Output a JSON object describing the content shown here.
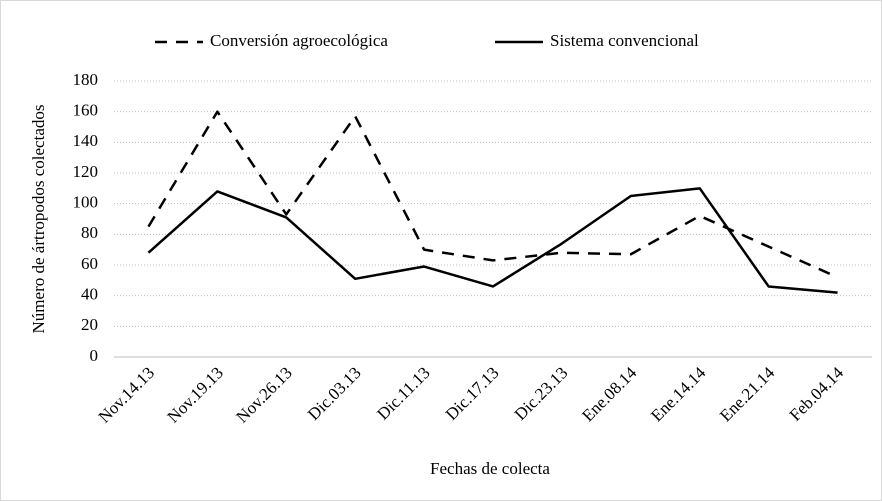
{
  "chart_data": {
    "type": "line",
    "categories": [
      "Nov.14.13",
      "Nov.19.13",
      "Nov.26.13",
      "Dic.03.13",
      "Dic.11.13",
      "Dic.17.13",
      "Dic.23.13",
      "Ene.08.14",
      "Ene.14.14",
      "Ene.21.14",
      "Feb.04.14"
    ],
    "series": [
      {
        "name": "Conversión agroecológica",
        "color": "#000000",
        "line_style": "dashed",
        "values": [
          85,
          160,
          93,
          157,
          70,
          63,
          68,
          67,
          92,
          72,
          52
        ]
      },
      {
        "name": "Sistema convencional",
        "color": "#000000",
        "line_style": "solid",
        "values": [
          68,
          108,
          91,
          51,
          59,
          46,
          74,
          105,
          110,
          46,
          42
        ]
      }
    ],
    "xlabel": "Fechas de colecta",
    "ylabel": "Número de ártropodos colectados",
    "ylim": [
      0,
      180
    ],
    "yticks": [
      0,
      20,
      40,
      60,
      80,
      100,
      120,
      140,
      160,
      180
    ],
    "grid": true,
    "legend": "top"
  }
}
